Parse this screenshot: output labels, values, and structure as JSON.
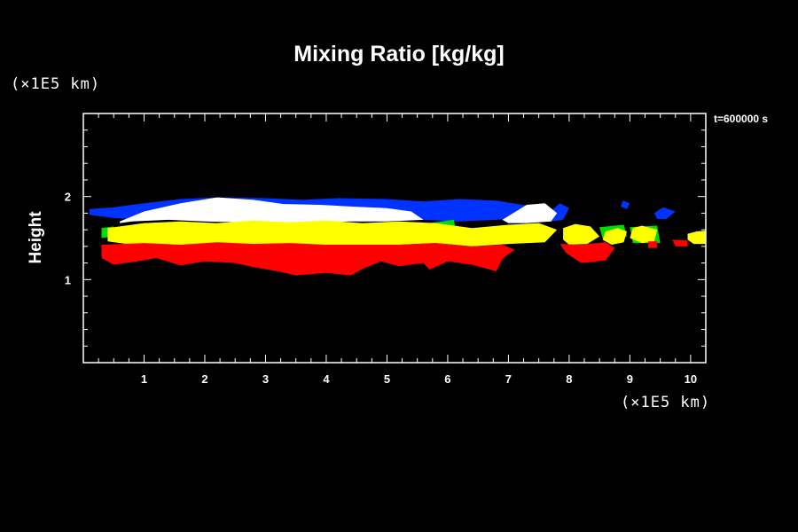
{
  "chart_data": {
    "type": "area",
    "title": "Mixing Ratio [kg/kg]",
    "xlabel": "",
    "ylabel": "Height",
    "x_unit": "(×1E5 km)",
    "y_unit": "(×1E5 km)",
    "time_label": "t=600000 s",
    "xlim": [
      0,
      10.25
    ],
    "ylim": [
      0,
      3.0
    ],
    "x_ticks": [
      "1",
      "2",
      "3",
      "4",
      "5",
      "6",
      "7",
      "8",
      "9",
      "10"
    ],
    "y_ticks": [
      "1",
      "2"
    ],
    "grid": false,
    "colors": {
      "background": "#000000",
      "blue": "#0033ff",
      "white": "#ffffff",
      "yellow": "#ffff00",
      "green": "#00dd00",
      "red": "#ff0000"
    },
    "series": [
      {
        "color": "blue",
        "regions": [
          {
            "x": [
              0.1,
              0.5,
              1.0,
              1.6,
              2.2,
              3.0,
              3.6,
              4.2,
              5.0,
              5.6,
              6.2,
              6.8,
              7.4,
              7.5,
              6.8,
              6.2,
              5.6,
              5.0,
              4.2,
              3.6,
              3.0,
              2.2,
              1.6,
              1.0,
              0.5,
              0.1
            ],
            "y": [
              1.85,
              1.87,
              1.92,
              1.97,
              1.99,
              1.98,
              1.96,
              1.98,
              1.97,
              1.94,
              1.97,
              1.95,
              1.88,
              1.75,
              1.72,
              1.7,
              1.72,
              1.76,
              1.77,
              1.78,
              1.77,
              1.77,
              1.74,
              1.72,
              1.74,
              1.78
            ]
          },
          {
            "x": [
              7.65,
              7.85,
              8.0,
              7.9,
              7.7,
              7.6
            ],
            "y": [
              1.8,
              1.92,
              1.86,
              1.72,
              1.7,
              1.74
            ]
          },
          {
            "x": [
              8.88,
              9.0,
              8.95,
              8.85
            ],
            "y": [
              1.95,
              1.92,
              1.85,
              1.88
            ]
          },
          {
            "x": [
              9.4,
              9.55,
              9.75,
              9.6,
              9.45
            ],
            "y": [
              1.8,
              1.87,
              1.82,
              1.73,
              1.73
            ]
          }
        ]
      },
      {
        "color": "white",
        "regions": [
          {
            "x": [
              0.6,
              1.0,
              1.6,
              2.2,
              2.8,
              3.3,
              3.9,
              4.4,
              5.0,
              5.4,
              5.6,
              5.0,
              4.4,
              3.8,
              3.2,
              2.6,
              2.0,
              1.4,
              0.8,
              0.6
            ],
            "y": [
              1.7,
              1.82,
              1.92,
              1.99,
              1.96,
              1.91,
              1.9,
              1.88,
              1.86,
              1.82,
              1.72,
              1.7,
              1.7,
              1.69,
              1.68,
              1.69,
              1.7,
              1.72,
              1.7,
              1.68
            ]
          },
          {
            "x": [
              6.9,
              7.3,
              7.6,
              7.8,
              7.7,
              7.3,
              7.0
            ],
            "y": [
              1.72,
              1.9,
              1.92,
              1.8,
              1.7,
              1.68,
              1.68
            ]
          }
        ]
      },
      {
        "color": "green",
        "regions": [
          {
            "x": [
              0.3,
              0.5,
              0.5,
              0.3
            ],
            "y": [
              1.62,
              1.64,
              1.52,
              1.5
            ]
          },
          {
            "x": [
              5.7,
              6.1,
              6.15,
              5.75
            ],
            "y": [
              1.68,
              1.72,
              1.55,
              1.52
            ]
          },
          {
            "x": [
              8.5,
              8.9,
              8.95,
              8.55
            ],
            "y": [
              1.63,
              1.66,
              1.52,
              1.5
            ]
          },
          {
            "x": [
              9.0,
              9.45,
              9.5,
              9.05
            ],
            "y": [
              1.63,
              1.65,
              1.44,
              1.44
            ]
          }
        ]
      },
      {
        "color": "yellow",
        "regions": [
          {
            "x": [
              0.4,
              1.0,
              1.6,
              2.2,
              2.8,
              3.4,
              4.0,
              4.6,
              5.2,
              5.8,
              6.4,
              7.0,
              7.5,
              7.8,
              7.6,
              7.0,
              6.4,
              5.8,
              5.2,
              4.6,
              4.0,
              3.4,
              2.8,
              2.2,
              1.6,
              1.0,
              0.4
            ],
            "y": [
              1.62,
              1.68,
              1.7,
              1.68,
              1.71,
              1.69,
              1.71,
              1.68,
              1.7,
              1.68,
              1.62,
              1.66,
              1.68,
              1.6,
              1.45,
              1.43,
              1.4,
              1.44,
              1.42,
              1.4,
              1.39,
              1.42,
              1.41,
              1.42,
              1.4,
              1.4,
              1.46
            ]
          },
          {
            "x": [
              7.9,
              8.1,
              8.35,
              8.5,
              8.3,
              8.0,
              7.9
            ],
            "y": [
              1.62,
              1.67,
              1.64,
              1.52,
              1.43,
              1.42,
              1.48
            ]
          },
          {
            "x": [
              8.6,
              8.8,
              8.95,
              8.9,
              8.7,
              8.55
            ],
            "y": [
              1.58,
              1.62,
              1.58,
              1.45,
              1.42,
              1.48
            ]
          },
          {
            "x": [
              9.05,
              9.2,
              9.45,
              9.4,
              9.2,
              9.0
            ],
            "y": [
              1.62,
              1.65,
              1.6,
              1.46,
              1.44,
              1.5
            ]
          },
          {
            "x": [
              9.95,
              10.1,
              10.25,
              10.25,
              10.05,
              9.95
            ],
            "y": [
              1.55,
              1.58,
              1.59,
              1.43,
              1.43,
              1.48
            ]
          }
        ]
      },
      {
        "color": "red",
        "regions": [
          {
            "x": [
              0.3,
              1.0,
              1.6,
              2.2,
              2.8,
              3.4,
              4.0,
              4.6,
              5.2,
              5.8,
              6.4,
              6.9,
              7.1,
              6.9,
              6.8,
              6.4,
              6.0,
              5.7,
              5.6,
              5.2,
              4.9,
              4.6,
              4.4,
              4.0,
              3.5,
              3.2,
              2.8,
              2.5,
              2.0,
              1.6,
              1.2,
              0.9,
              0.5,
              0.3
            ],
            "y": [
              1.42,
              1.44,
              1.42,
              1.45,
              1.43,
              1.44,
              1.42,
              1.42,
              1.42,
              1.44,
              1.4,
              1.42,
              1.36,
              1.25,
              1.1,
              1.18,
              1.22,
              1.12,
              1.2,
              1.16,
              1.22,
              1.13,
              1.05,
              1.08,
              1.05,
              1.1,
              1.15,
              1.2,
              1.22,
              1.17,
              1.26,
              1.22,
              1.18,
              1.26
            ]
          },
          {
            "x": [
              7.85,
              8.2,
              8.6,
              8.75,
              8.6,
              8.2,
              7.95
            ],
            "y": [
              1.43,
              1.42,
              1.45,
              1.38,
              1.23,
              1.2,
              1.32
            ]
          },
          {
            "x": [
              9.3,
              9.45,
              9.45,
              9.3
            ],
            "y": [
              1.46,
              1.46,
              1.38,
              1.38
            ]
          },
          {
            "x": [
              9.7,
              9.95,
              9.95,
              9.75
            ],
            "y": [
              1.48,
              1.47,
              1.4,
              1.4
            ]
          }
        ]
      }
    ]
  }
}
